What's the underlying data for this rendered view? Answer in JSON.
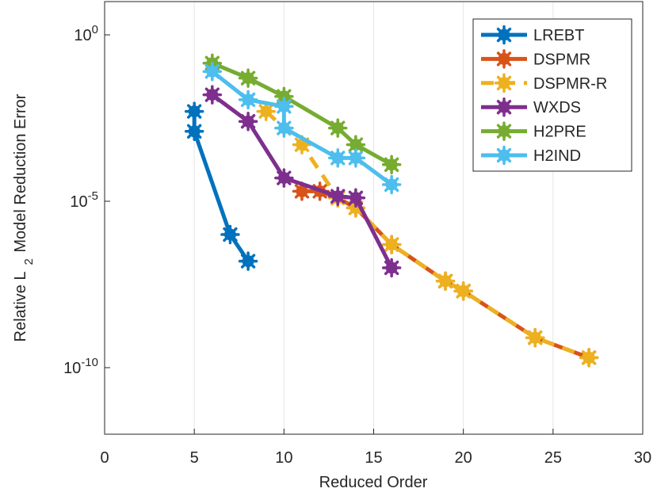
{
  "chart_data": {
    "type": "line",
    "title": "",
    "xlabel": "Reduced Order",
    "ylabel": {
      "main": "Relative L",
      "subscript": "2",
      "rest": " Model Reduction Error"
    },
    "xlim": [
      0,
      30
    ],
    "ylim_exp": [
      -12,
      1
    ],
    "y_scale": "log",
    "grid": "vertical",
    "legend_position": "top-right",
    "x_ticks": [
      {
        "value": 0,
        "label": "0"
      },
      {
        "value": 5,
        "label": "5"
      },
      {
        "value": 10,
        "label": "10"
      },
      {
        "value": 15,
        "label": "15"
      },
      {
        "value": 20,
        "label": "20"
      },
      {
        "value": 25,
        "label": "25"
      },
      {
        "value": 30,
        "label": "30"
      }
    ],
    "y_ticks": [
      {
        "exp": 0,
        "base": "10",
        "sup": "0"
      },
      {
        "exp": -5,
        "base": "10",
        "sup": "-5"
      },
      {
        "exp": -10,
        "base": "10",
        "sup": "-10"
      }
    ],
    "series": [
      {
        "name": "LREBT",
        "color": "#0072BD",
        "dashed": false,
        "x": [
          5,
          5,
          7,
          8
        ],
        "log10_y": [
          -2.3,
          -2.9,
          -6.0,
          -6.8
        ]
      },
      {
        "name": "DSPMR",
        "color": "#D95319",
        "dashed": false,
        "x": [
          11,
          12,
          13,
          14,
          16,
          19,
          20,
          24,
          27
        ],
        "log10_y": [
          -4.7,
          -4.7,
          -4.9,
          -5.2,
          -6.3,
          -7.4,
          -7.7,
          -9.1,
          -9.7
        ]
      },
      {
        "name": "DSPMR-R",
        "color": "#EDB120",
        "dashed": true,
        "x": [
          9,
          11,
          13,
          14,
          16,
          19,
          20,
          24,
          27
        ],
        "log10_y": [
          -2.3,
          -3.3,
          -4.9,
          -5.2,
          -6.3,
          -7.4,
          -7.7,
          -9.1,
          -9.7
        ]
      },
      {
        "name": "WXDS",
        "color": "#7E2F8E",
        "dashed": false,
        "x": [
          6,
          8,
          10,
          13,
          14,
          16
        ],
        "log10_y": [
          -1.8,
          -2.6,
          -4.3,
          -4.85,
          -4.9,
          -7.0
        ]
      },
      {
        "name": "H2PRE",
        "color": "#77AC30",
        "dashed": false,
        "x": [
          6,
          8,
          10,
          13,
          14,
          16
        ],
        "log10_y": [
          -0.85,
          -1.3,
          -1.85,
          -2.8,
          -3.3,
          -3.9
        ]
      },
      {
        "name": "H2IND",
        "color": "#4DBEEE",
        "dashed": false,
        "x": [
          6,
          8,
          10,
          10,
          13,
          14,
          16
        ],
        "log10_y": [
          -1.1,
          -1.95,
          -2.15,
          -2.8,
          -3.7,
          -3.7,
          -4.5
        ]
      }
    ]
  }
}
